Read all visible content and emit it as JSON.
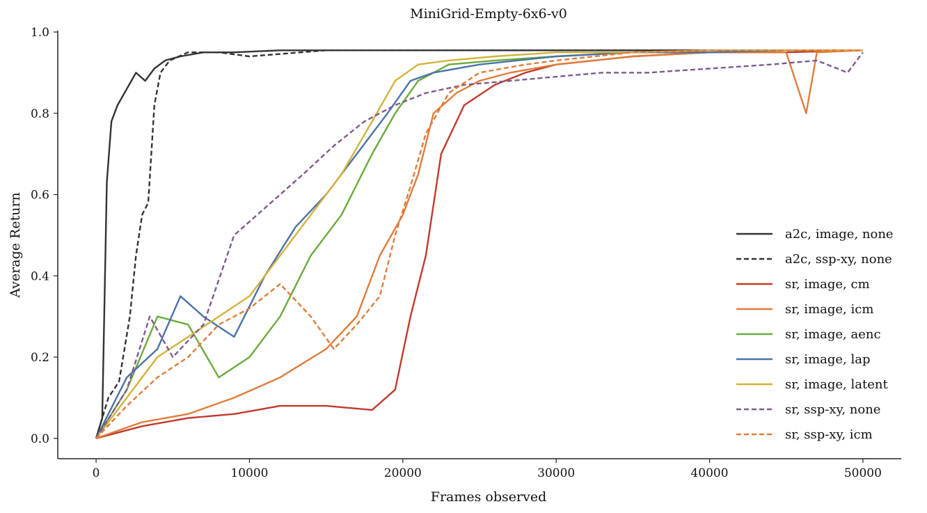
{
  "chart_data": {
    "type": "line",
    "title": "MiniGrid-Empty-6x6-v0",
    "xlabel": "Frames observed",
    "ylabel": "Average Return",
    "xlim": [
      -2500,
      52500
    ],
    "ylim": [
      -0.05,
      1.0
    ],
    "xticks": [
      0,
      10000,
      20000,
      30000,
      40000,
      50000
    ],
    "xtick_labels": [
      "0",
      "10000",
      "20000",
      "30000",
      "40000",
      "50000"
    ],
    "yticks": [
      0.0,
      0.2,
      0.4,
      0.6,
      0.8,
      1.0
    ],
    "ytick_labels": [
      "0.0",
      "0.2",
      "0.4",
      "0.6",
      "0.8",
      "1.0"
    ],
    "grid": false,
    "legend_position": "lower right",
    "series": [
      {
        "name": "a2c, image, none",
        "color": "#333333",
        "dash": "solid",
        "x": [
          0,
          400,
          700,
          1000,
          1400,
          2000,
          2600,
          3200,
          3800,
          4500,
          5500,
          7000,
          9000,
          12000,
          15000,
          20000,
          30000,
          40000,
          50000
        ],
        "y": [
          0.0,
          0.05,
          0.63,
          0.78,
          0.82,
          0.86,
          0.9,
          0.88,
          0.91,
          0.93,
          0.94,
          0.95,
          0.95,
          0.955,
          0.955,
          0.955,
          0.955,
          0.955,
          0.955
        ]
      },
      {
        "name": "a2c, ssp-xy, none",
        "color": "#333333",
        "dash": "dashed",
        "x": [
          0,
          800,
          1500,
          2200,
          2600,
          3000,
          3400,
          3800,
          4200,
          4800,
          6000,
          8000,
          10000,
          15000,
          20000,
          30000,
          40000,
          50000
        ],
        "y": [
          0.0,
          0.1,
          0.14,
          0.3,
          0.45,
          0.55,
          0.58,
          0.82,
          0.9,
          0.93,
          0.95,
          0.95,
          0.94,
          0.955,
          0.955,
          0.955,
          0.955,
          0.955
        ]
      },
      {
        "name": "sr, image, cm",
        "color": "#c0392b",
        "dash": "solid",
        "x": [
          0,
          3000,
          6000,
          9000,
          12000,
          15000,
          18000,
          19500,
          20500,
          21500,
          22500,
          24000,
          26000,
          28000,
          30000,
          35000,
          40000,
          45000,
          50000
        ],
        "y": [
          0.0,
          0.03,
          0.05,
          0.06,
          0.08,
          0.08,
          0.07,
          0.12,
          0.3,
          0.45,
          0.7,
          0.82,
          0.87,
          0.9,
          0.92,
          0.94,
          0.95,
          0.95,
          0.955
        ]
      },
      {
        "name": "sr, image, icm",
        "color": "#e07b39",
        "dash": "solid",
        "x": [
          0,
          3000,
          6000,
          9000,
          12000,
          15000,
          17000,
          18500,
          20000,
          21000,
          22000,
          23500,
          25000,
          27000,
          30000,
          35000,
          40000,
          45000,
          46300,
          47000,
          50000
        ],
        "y": [
          0.0,
          0.04,
          0.06,
          0.1,
          0.15,
          0.22,
          0.3,
          0.45,
          0.55,
          0.65,
          0.8,
          0.85,
          0.88,
          0.9,
          0.92,
          0.94,
          0.95,
          0.95,
          0.8,
          0.95,
          0.955
        ]
      },
      {
        "name": "sr, image, aenc",
        "color": "#6aaa3a",
        "dash": "solid",
        "x": [
          0,
          2000,
          4000,
          6000,
          8000,
          10000,
          12000,
          14000,
          16000,
          18000,
          19500,
          21000,
          23000,
          26000,
          30000,
          35000,
          40000,
          45000,
          50000
        ],
        "y": [
          0.0,
          0.12,
          0.3,
          0.28,
          0.15,
          0.2,
          0.3,
          0.45,
          0.55,
          0.7,
          0.8,
          0.88,
          0.92,
          0.93,
          0.94,
          0.95,
          0.95,
          0.955,
          0.955
        ]
      },
      {
        "name": "sr, image, lap",
        "color": "#4a72a8",
        "dash": "solid",
        "x": [
          0,
          2000,
          4000,
          5500,
          7000,
          9000,
          11000,
          13000,
          15000,
          17000,
          19000,
          20500,
          22000,
          25000,
          30000,
          35000,
          40000,
          45000,
          50000
        ],
        "y": [
          0.0,
          0.15,
          0.22,
          0.35,
          0.3,
          0.25,
          0.4,
          0.52,
          0.6,
          0.7,
          0.8,
          0.88,
          0.9,
          0.92,
          0.94,
          0.95,
          0.95,
          0.955,
          0.955
        ]
      },
      {
        "name": "sr, image, latent",
        "color": "#d4b23a",
        "dash": "solid",
        "x": [
          0,
          2000,
          4000,
          6000,
          8000,
          10000,
          12000,
          14000,
          16000,
          18000,
          19500,
          21000,
          23000,
          26000,
          30000,
          35000,
          40000,
          45000,
          50000
        ],
        "y": [
          0.0,
          0.1,
          0.2,
          0.25,
          0.3,
          0.35,
          0.45,
          0.55,
          0.65,
          0.78,
          0.88,
          0.92,
          0.93,
          0.94,
          0.95,
          0.95,
          0.955,
          0.955,
          0.955
        ]
      },
      {
        "name": "sr, ssp-xy, none",
        "color": "#7e5a8c",
        "dash": "dashed",
        "x": [
          0,
          2000,
          3500,
          5000,
          7000,
          9000,
          10500,
          12000,
          13500,
          15500,
          17500,
          19500,
          21500,
          24000,
          27000,
          30000,
          33000,
          36000,
          40000,
          44000,
          47000,
          49000,
          50000
        ],
        "y": [
          0.0,
          0.12,
          0.3,
          0.2,
          0.28,
          0.5,
          0.55,
          0.6,
          0.65,
          0.72,
          0.78,
          0.82,
          0.85,
          0.87,
          0.88,
          0.89,
          0.9,
          0.9,
          0.91,
          0.92,
          0.93,
          0.9,
          0.95
        ]
      },
      {
        "name": "sr, ssp-xy, icm",
        "color": "#e07b39",
        "dash": "dashed",
        "x": [
          0,
          2000,
          4000,
          6000,
          8000,
          10000,
          12000,
          14000,
          15500,
          17000,
          18500,
          19500,
          20500,
          21500,
          23000,
          25000,
          28000,
          30000,
          35000,
          40000,
          45000,
          50000
        ],
        "y": [
          0.0,
          0.08,
          0.15,
          0.2,
          0.28,
          0.32,
          0.38,
          0.3,
          0.22,
          0.28,
          0.35,
          0.5,
          0.62,
          0.75,
          0.85,
          0.9,
          0.92,
          0.93,
          0.95,
          0.955,
          0.955,
          0.955
        ]
      }
    ]
  }
}
